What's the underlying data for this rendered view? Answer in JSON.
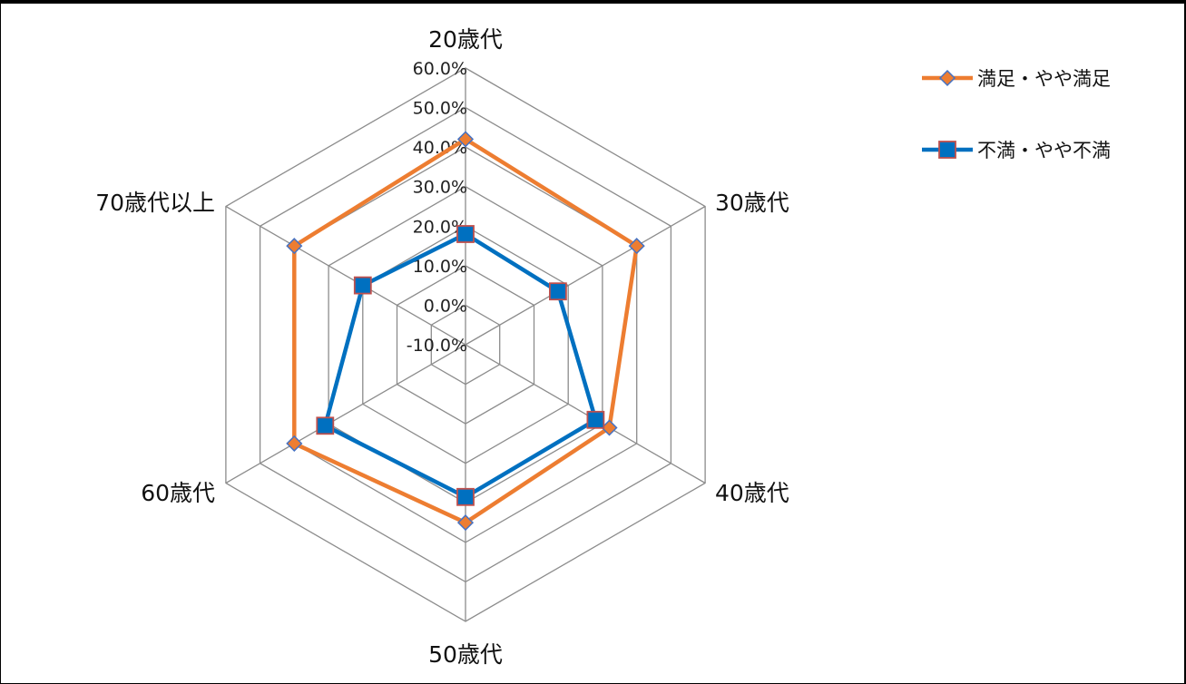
{
  "chart_data": {
    "type": "radar",
    "categories": [
      "20歳代",
      "30歳代",
      "40歳代",
      "50歳代",
      "60歳代",
      "70歳代以上"
    ],
    "series": [
      {
        "name": "満足・やや満足",
        "values": [
          42.0,
          40.0,
          32.0,
          35.0,
          40.0,
          40.0
        ],
        "color": "#ED7D31",
        "marker": "diamond"
      },
      {
        "name": "不満・やや不満",
        "values": [
          18.0,
          17.0,
          28.0,
          28.5,
          31.0,
          20.0
        ],
        "color": "#0070C0",
        "marker": "square"
      }
    ],
    "rlim": [
      -10.0,
      60.0
    ],
    "ticks": [
      "-10.0%",
      "0.0%",
      "10.0%",
      "20.0%",
      "30.0%",
      "40.0%",
      "50.0%",
      "60.0%"
    ],
    "tick_values": [
      -10,
      0,
      10,
      20,
      30,
      40,
      50,
      60
    ],
    "legend_position": "top-right",
    "grid": true
  }
}
